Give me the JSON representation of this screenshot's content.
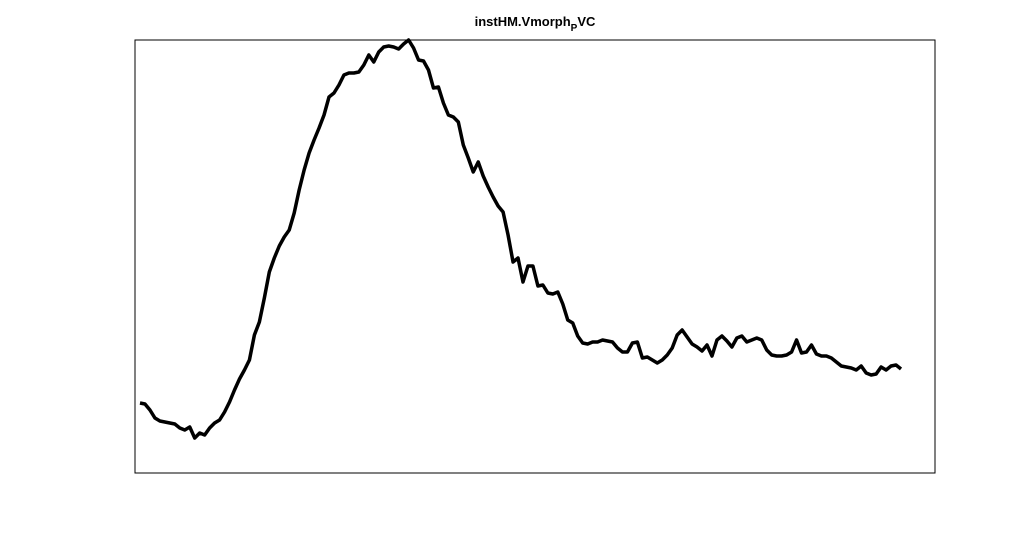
{
  "chart_data": {
    "type": "line",
    "title": "instHM.Vmorph",
    "title_subscript": "P",
    "title_suffix": "VC",
    "ylim": [
      0,
      433
    ],
    "color": "#000000",
    "values": [
      70,
      69,
      63,
      55,
      52,
      51,
      50,
      49,
      45,
      43,
      46,
      35,
      40,
      38,
      45,
      50,
      53,
      61,
      71,
      83,
      94,
      103,
      113,
      138,
      151,
      175,
      201,
      215,
      227,
      236,
      243,
      260,
      283,
      303,
      320,
      333,
      345,
      358,
      376,
      380,
      388,
      398,
      400,
      400,
      401,
      408,
      418,
      411,
      421,
      426,
      427,
      426,
      424,
      429,
      433,
      425,
      413,
      412,
      403,
      385,
      386,
      370,
      358,
      356,
      351,
      328,
      315,
      301,
      311,
      297,
      286,
      276,
      267,
      261,
      238,
      211,
      215,
      191,
      207,
      207,
      187,
      188,
      180,
      179,
      181,
      169,
      153,
      150,
      137,
      130,
      129,
      131,
      131,
      133,
      132,
      131,
      125,
      121,
      121,
      130,
      131,
      115,
      116,
      113,
      110,
      113,
      118,
      125,
      138,
      143,
      136,
      129,
      126,
      122,
      128,
      117,
      133,
      137,
      132,
      126,
      135,
      137,
      131,
      133,
      135,
      133,
      123,
      118,
      117,
      117,
      118,
      121,
      133,
      120,
      121,
      128,
      119,
      117,
      117,
      115,
      111,
      107,
      106,
      105,
      103,
      107,
      100,
      98,
      99,
      106,
      103,
      107,
      108,
      104
    ]
  }
}
